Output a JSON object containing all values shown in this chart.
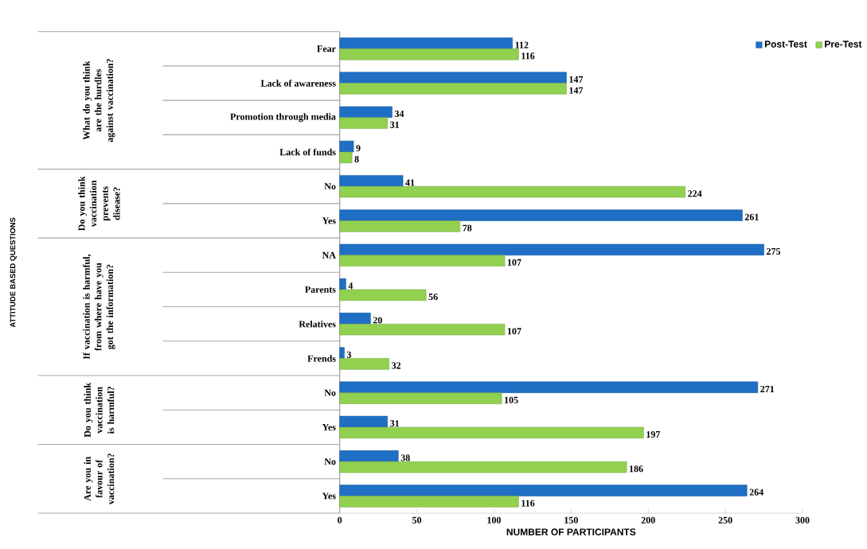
{
  "chart_data": {
    "type": "bar",
    "orientation": "horizontal",
    "categories": [
      "Fear",
      "Lack of awareness",
      "Promotion through media",
      "Lack of funds",
      "No",
      "Yes",
      "NA",
      "Parents",
      "Relatives",
      "Frends",
      "No",
      "Yes",
      "No",
      "Yes"
    ],
    "series": [
      {
        "name": "Post-Test",
        "color": "#1f6fc5",
        "values": [
          112,
          147,
          34,
          9,
          41,
          261,
          275,
          4,
          20,
          3,
          271,
          31,
          38,
          264
        ]
      },
      {
        "name": "Pre-Test",
        "color": "#92d050",
        "values": [
          116,
          147,
          31,
          8,
          224,
          78,
          107,
          56,
          107,
          32,
          105,
          197,
          186,
          116
        ]
      }
    ],
    "xlim": [
      0,
      300
    ],
    "xticks": [
      0,
      50,
      100,
      150,
      200,
      250,
      300
    ],
    "xlabel": "NUMBER OF PARTICIPANTS",
    "annotations": [
      "What do you think are the hurdles against vaccination?",
      "Do you think vaccination prevents disease?",
      "If vaccination is harmful, from where have you got the information?",
      "Do you think vaccination is harmful?",
      "Are you in favour of vaccination?",
      "ATTITUDE BASED QUESTIONS"
    ],
    "data_labels": true,
    "legend": "top right"
  }
}
